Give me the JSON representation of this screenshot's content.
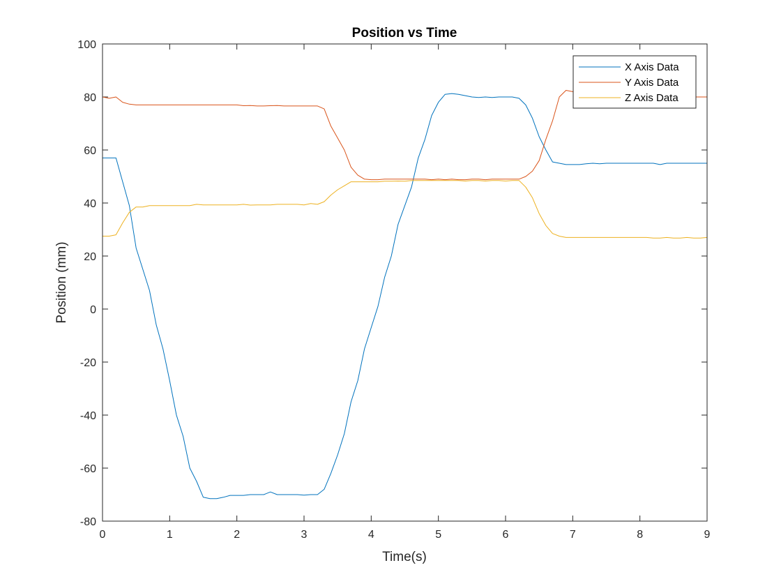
{
  "chart_data": {
    "type": "line",
    "title": "Position vs Time",
    "xlabel": "Time(s)",
    "ylabel": "Position (mm)",
    "xlim": [
      0,
      9
    ],
    "ylim": [
      -80,
      100
    ],
    "xticks": [
      "0",
      "1",
      "2",
      "3",
      "4",
      "5",
      "6",
      "7",
      "8",
      "9"
    ],
    "yticks": [
      "-80",
      "-60",
      "-40",
      "-20",
      "0",
      "20",
      "40",
      "60",
      "80",
      "100"
    ],
    "grid": false,
    "legend": "top-right",
    "series": [
      {
        "name": "X Axis Data",
        "color": "#0072BD",
        "points": [
          [
            0,
            57
          ],
          [
            0.1,
            57
          ],
          [
            0.2,
            57
          ],
          [
            0.3,
            48
          ],
          [
            0.4,
            39
          ],
          [
            0.5,
            23
          ],
          [
            0.6,
            15
          ],
          [
            0.7,
            7
          ],
          [
            0.8,
            -6
          ],
          [
            0.9,
            -15
          ],
          [
            1.0,
            -27
          ],
          [
            1.1,
            -40
          ],
          [
            1.2,
            -48
          ],
          [
            1.3,
            -60
          ],
          [
            1.4,
            -65
          ],
          [
            1.5,
            -71
          ],
          [
            1.6,
            -71.5
          ],
          [
            1.7,
            -71.5
          ],
          [
            1.8,
            -71
          ],
          [
            1.9,
            -70.3
          ],
          [
            2.0,
            -70.3
          ],
          [
            2.1,
            -70.3
          ],
          [
            2.2,
            -70
          ],
          [
            2.3,
            -70
          ],
          [
            2.4,
            -70
          ],
          [
            2.5,
            -69
          ],
          [
            2.6,
            -70
          ],
          [
            2.7,
            -70
          ],
          [
            2.8,
            -70
          ],
          [
            2.9,
            -70
          ],
          [
            3.0,
            -70.2
          ],
          [
            3.1,
            -70
          ],
          [
            3.2,
            -70
          ],
          [
            3.3,
            -68
          ],
          [
            3.4,
            -62
          ],
          [
            3.5,
            -55
          ],
          [
            3.6,
            -47
          ],
          [
            3.7,
            -35
          ],
          [
            3.8,
            -27
          ],
          [
            3.9,
            -15
          ],
          [
            4.0,
            -7
          ],
          [
            4.1,
            1
          ],
          [
            4.2,
            12
          ],
          [
            4.3,
            20
          ],
          [
            4.4,
            32
          ],
          [
            4.5,
            39
          ],
          [
            4.6,
            46
          ],
          [
            4.7,
            57
          ],
          [
            4.8,
            64
          ],
          [
            4.9,
            73
          ],
          [
            5.0,
            78
          ],
          [
            5.1,
            81
          ],
          [
            5.2,
            81.3
          ],
          [
            5.3,
            81
          ],
          [
            5.4,
            80.5
          ],
          [
            5.5,
            80
          ],
          [
            5.6,
            79.8
          ],
          [
            5.7,
            80
          ],
          [
            5.8,
            79.8
          ],
          [
            5.9,
            80
          ],
          [
            6.0,
            80
          ],
          [
            6.1,
            80
          ],
          [
            6.2,
            79.5
          ],
          [
            6.3,
            77
          ],
          [
            6.4,
            72
          ],
          [
            6.5,
            65
          ],
          [
            6.6,
            60
          ],
          [
            6.7,
            55.5
          ],
          [
            6.8,
            55
          ],
          [
            6.9,
            54.5
          ],
          [
            7.0,
            54.5
          ],
          [
            7.1,
            54.5
          ],
          [
            7.2,
            54.8
          ],
          [
            7.3,
            55
          ],
          [
            7.4,
            54.8
          ],
          [
            7.5,
            55
          ],
          [
            7.6,
            55
          ],
          [
            7.7,
            55
          ],
          [
            7.8,
            55
          ],
          [
            7.9,
            55
          ],
          [
            8.0,
            55
          ],
          [
            8.1,
            55
          ],
          [
            8.2,
            55
          ],
          [
            8.3,
            54.5
          ],
          [
            8.4,
            55
          ],
          [
            8.5,
            55
          ],
          [
            8.6,
            55
          ],
          [
            8.7,
            55
          ],
          [
            8.8,
            55
          ],
          [
            8.9,
            55
          ],
          [
            9.0,
            55
          ]
        ]
      },
      {
        "name": "Y Axis Data",
        "color": "#D95319",
        "points": [
          [
            0,
            80
          ],
          [
            0.1,
            79.5
          ],
          [
            0.2,
            80
          ],
          [
            0.3,
            78
          ],
          [
            0.4,
            77.3
          ],
          [
            0.5,
            77
          ],
          [
            0.6,
            77
          ],
          [
            0.7,
            77
          ],
          [
            0.8,
            77
          ],
          [
            0.9,
            77
          ],
          [
            1.0,
            77
          ],
          [
            1.1,
            77
          ],
          [
            1.2,
            77
          ],
          [
            1.3,
            77
          ],
          [
            1.4,
            77
          ],
          [
            1.5,
            77
          ],
          [
            1.6,
            77
          ],
          [
            1.7,
            77
          ],
          [
            1.8,
            77
          ],
          [
            1.9,
            77
          ],
          [
            2.0,
            77
          ],
          [
            2.1,
            76.7
          ],
          [
            2.2,
            76.8
          ],
          [
            2.3,
            76.6
          ],
          [
            2.4,
            76.6
          ],
          [
            2.5,
            76.7
          ],
          [
            2.6,
            76.8
          ],
          [
            2.7,
            76.6
          ],
          [
            2.8,
            76.6
          ],
          [
            2.9,
            76.6
          ],
          [
            3.0,
            76.6
          ],
          [
            3.1,
            76.6
          ],
          [
            3.2,
            76.6
          ],
          [
            3.3,
            75.5
          ],
          [
            3.4,
            69
          ],
          [
            3.5,
            64.5
          ],
          [
            3.6,
            60
          ],
          [
            3.7,
            53.5
          ],
          [
            3.8,
            50.5
          ],
          [
            3.9,
            49
          ],
          [
            4.0,
            48.8
          ],
          [
            4.1,
            48.8
          ],
          [
            4.2,
            49
          ],
          [
            4.3,
            49
          ],
          [
            4.4,
            49
          ],
          [
            4.5,
            49
          ],
          [
            4.6,
            49
          ],
          [
            4.7,
            49
          ],
          [
            4.8,
            49
          ],
          [
            4.9,
            48.8
          ],
          [
            5.0,
            49
          ],
          [
            5.1,
            48.8
          ],
          [
            5.2,
            49
          ],
          [
            5.3,
            48.8
          ],
          [
            5.4,
            48.8
          ],
          [
            5.5,
            49
          ],
          [
            5.6,
            49
          ],
          [
            5.7,
            48.8
          ],
          [
            5.8,
            49
          ],
          [
            5.9,
            49
          ],
          [
            6.0,
            49
          ],
          [
            6.1,
            49
          ],
          [
            6.2,
            49
          ],
          [
            6.3,
            50
          ],
          [
            6.4,
            52
          ],
          [
            6.5,
            56
          ],
          [
            6.6,
            64
          ],
          [
            6.7,
            71
          ],
          [
            6.8,
            80
          ],
          [
            6.9,
            82.5
          ],
          [
            7.0,
            82
          ],
          [
            7.1,
            81
          ],
          [
            7.2,
            80
          ],
          [
            7.3,
            80
          ],
          [
            7.4,
            80
          ],
          [
            7.5,
            80
          ],
          [
            7.6,
            80
          ],
          [
            7.7,
            80
          ],
          [
            7.8,
            80
          ],
          [
            7.9,
            80
          ],
          [
            8.0,
            80
          ],
          [
            8.1,
            80
          ],
          [
            8.2,
            80
          ],
          [
            8.3,
            80
          ],
          [
            8.4,
            80
          ],
          [
            8.5,
            80
          ],
          [
            8.6,
            80
          ],
          [
            8.7,
            80
          ],
          [
            8.8,
            80
          ],
          [
            8.9,
            80
          ],
          [
            9.0,
            80
          ]
        ]
      },
      {
        "name": "Z Axis Data",
        "color": "#EDB120",
        "points": [
          [
            0,
            27.5
          ],
          [
            0.1,
            27.5
          ],
          [
            0.2,
            28
          ],
          [
            0.3,
            32.5
          ],
          [
            0.4,
            36.5
          ],
          [
            0.5,
            38.5
          ],
          [
            0.6,
            38.5
          ],
          [
            0.7,
            39
          ],
          [
            0.8,
            39
          ],
          [
            0.9,
            39
          ],
          [
            1.0,
            39
          ],
          [
            1.1,
            39
          ],
          [
            1.2,
            39
          ],
          [
            1.3,
            39
          ],
          [
            1.4,
            39.5
          ],
          [
            1.5,
            39.3
          ],
          [
            1.6,
            39.3
          ],
          [
            1.7,
            39.3
          ],
          [
            1.8,
            39.3
          ],
          [
            1.9,
            39.3
          ],
          [
            2.0,
            39.3
          ],
          [
            2.1,
            39.5
          ],
          [
            2.2,
            39.2
          ],
          [
            2.3,
            39.3
          ],
          [
            2.4,
            39.3
          ],
          [
            2.5,
            39.3
          ],
          [
            2.6,
            39.5
          ],
          [
            2.7,
            39.5
          ],
          [
            2.8,
            39.5
          ],
          [
            2.9,
            39.5
          ],
          [
            3.0,
            39.3
          ],
          [
            3.1,
            39.8
          ],
          [
            3.2,
            39.5
          ],
          [
            3.3,
            40.5
          ],
          [
            3.4,
            43
          ],
          [
            3.5,
            45
          ],
          [
            3.6,
            46.5
          ],
          [
            3.7,
            48
          ],
          [
            3.8,
            48
          ],
          [
            3.9,
            48
          ],
          [
            4.0,
            48
          ],
          [
            4.1,
            48
          ],
          [
            4.2,
            48.2
          ],
          [
            4.3,
            48.2
          ],
          [
            4.4,
            48.3
          ],
          [
            4.5,
            48.2
          ],
          [
            4.6,
            48.5
          ],
          [
            4.7,
            48.5
          ],
          [
            4.8,
            48.5
          ],
          [
            4.9,
            48.5
          ],
          [
            5.0,
            48.5
          ],
          [
            5.1,
            48.5
          ],
          [
            5.2,
            48.5
          ],
          [
            5.3,
            48.5
          ],
          [
            5.4,
            48.3
          ],
          [
            5.5,
            48.5
          ],
          [
            5.6,
            48.5
          ],
          [
            5.7,
            48.3
          ],
          [
            5.8,
            48.5
          ],
          [
            5.9,
            48.5
          ],
          [
            6.0,
            48.3
          ],
          [
            6.1,
            48.5
          ],
          [
            6.2,
            48.5
          ],
          [
            6.3,
            46
          ],
          [
            6.4,
            42
          ],
          [
            6.5,
            36
          ],
          [
            6.6,
            31.5
          ],
          [
            6.7,
            28.5
          ],
          [
            6.8,
            27.5
          ],
          [
            6.9,
            27
          ],
          [
            7.0,
            27
          ],
          [
            7.1,
            27
          ],
          [
            7.2,
            27
          ],
          [
            7.3,
            27
          ],
          [
            7.4,
            27
          ],
          [
            7.5,
            27
          ],
          [
            7.6,
            27
          ],
          [
            7.7,
            27
          ],
          [
            7.8,
            27
          ],
          [
            7.9,
            27
          ],
          [
            8.0,
            27
          ],
          [
            8.1,
            27
          ],
          [
            8.2,
            26.8
          ],
          [
            8.3,
            26.8
          ],
          [
            8.4,
            27
          ],
          [
            8.5,
            26.8
          ],
          [
            8.6,
            26.8
          ],
          [
            8.7,
            27
          ],
          [
            8.8,
            26.8
          ],
          [
            8.9,
            26.8
          ],
          [
            9.0,
            27
          ]
        ]
      }
    ]
  }
}
